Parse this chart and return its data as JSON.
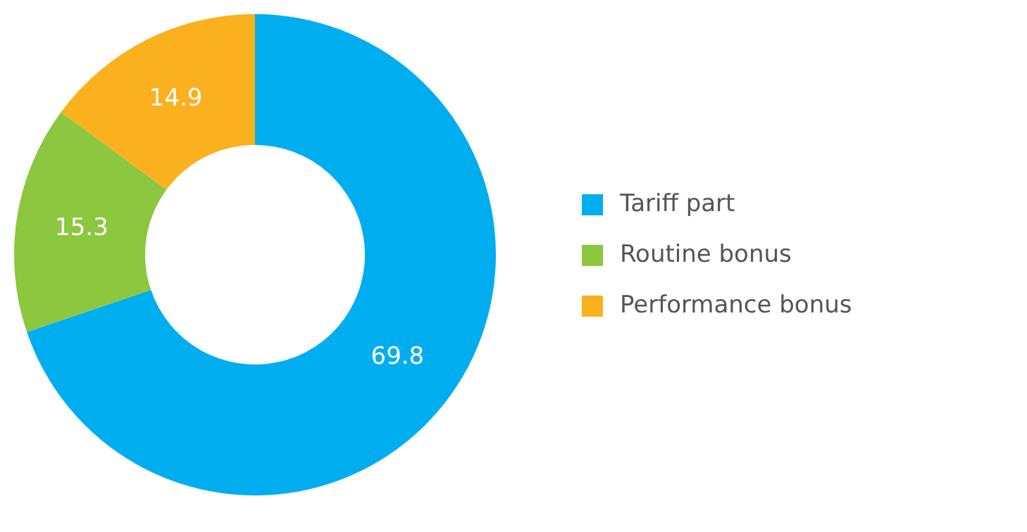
{
  "chart_data": {
    "type": "donut",
    "categories": [
      "Tariff part",
      "Routine bonus",
      "Performance bonus"
    ],
    "values": [
      69.8,
      15.3,
      14.9
    ],
    "colors": [
      "#00aeef",
      "#8dc63f",
      "#fbb01e"
    ],
    "data_labels": true,
    "legend": "right"
  }
}
